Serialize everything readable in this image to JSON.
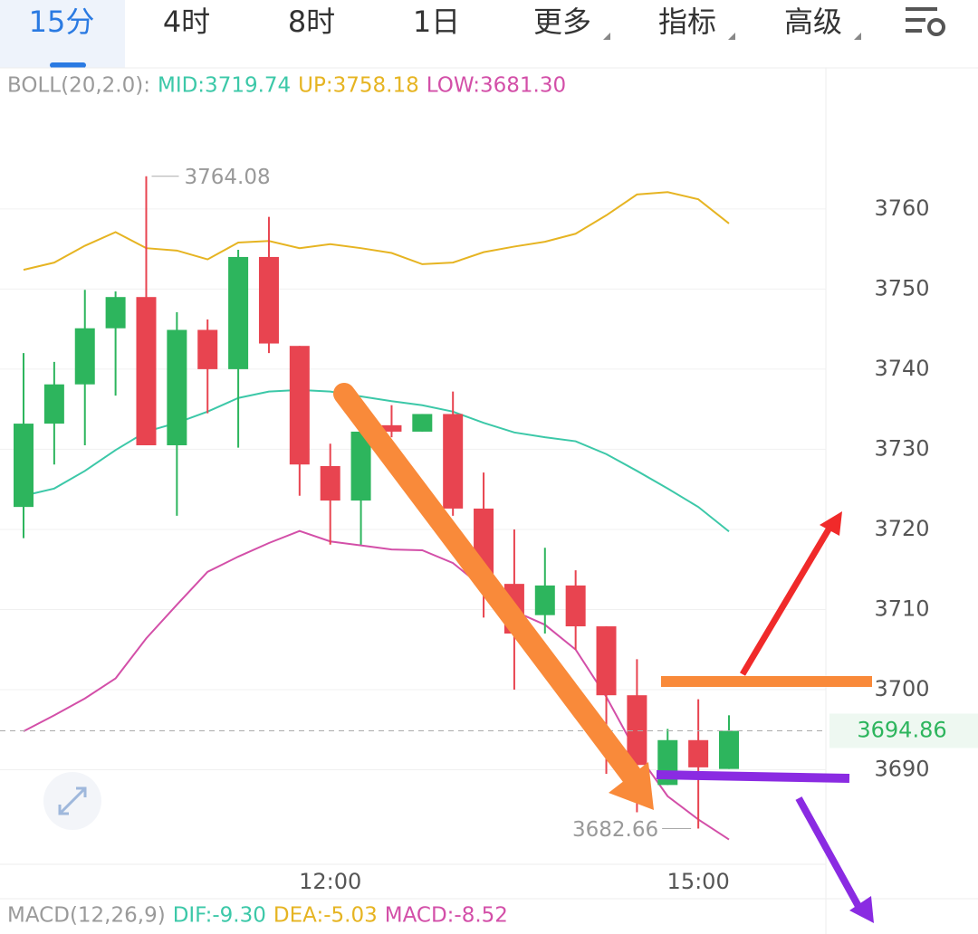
{
  "tabs": [
    "15分",
    "4时",
    "8时",
    "1日",
    "更多",
    "指标",
    "高级"
  ],
  "chart_data": {
    "type": "candlestick",
    "boll_labels": [
      "BOLL(20,2.0):",
      "MID:3719.74",
      "UP:3758.18",
      "LOW:3681.30"
    ],
    "boll_label_colors": [
      "#9a9a9a",
      "#3cc8a8",
      "#e6b422",
      "#d34fa8"
    ],
    "macd_labels": [
      "MACD(12,26,9)",
      "DIF:-9.30",
      "DEA:-5.03",
      "MACD:-8.52"
    ],
    "macd_label_colors": [
      "#9a9a9a",
      "#3cc8a8",
      "#e6b422",
      "#d34fa8"
    ],
    "categories": [
      null,
      null,
      null,
      null,
      null,
      null,
      null,
      null,
      null,
      null,
      "12:00",
      null,
      null,
      null,
      null,
      null,
      null,
      null,
      null,
      null,
      null,
      null,
      "15:00",
      null
    ],
    "open": [
      3722.8,
      3733.2,
      3738.1,
      3745.1,
      3749.0,
      3730.5,
      3744.9,
      3740.0,
      3754.0,
      3742.9,
      3727.9,
      3723.6,
      3733.0,
      3732.2,
      3734.4,
      3722.6,
      3713.2,
      3709.3,
      3713.0,
      3707.9,
      3699.3,
      3688.1,
      3693.7,
      3690.1
    ],
    "high": [
      3742.0,
      3740.9,
      3749.9,
      3749.7,
      3764.08,
      3747.1,
      3746.2,
      3754.9,
      3759.0,
      3742.9,
      3730.7,
      3732.2,
      3735.5,
      3734.4,
      3737.2,
      3727.1,
      3720.0,
      3717.7,
      3714.9,
      3707.9,
      3703.8,
      3695.1,
      3698.8,
      3696.8
    ],
    "low": [
      3718.9,
      3728.1,
      3730.5,
      3736.7,
      3730.5,
      3721.7,
      3734.5,
      3730.2,
      3742.0,
      3724.2,
      3718.1,
      3718.1,
      3731.5,
      3732.2,
      3721.7,
      3709.0,
      3700.0,
      3707.0,
      3705.0,
      3689.5,
      3684.7,
      3688.1,
      3682.66,
      3690.1
    ],
    "close": [
      3733.2,
      3738.1,
      3745.1,
      3749.0,
      3730.5,
      3744.9,
      3740.0,
      3754.0,
      3743.2,
      3728.1,
      3723.6,
      3732.2,
      3732.2,
      3734.4,
      3722.6,
      3713.2,
      3707.0,
      3713.0,
      3707.9,
      3699.3,
      3690.6,
      3693.7,
      3690.3,
      3694.86
    ],
    "up_color": "#2db55d",
    "down_color": "#e84450",
    "series": [
      {
        "color": "#e6b422",
        "values": [
          3752.4,
          3753.3,
          3755.4,
          3757.1,
          3755.1,
          3754.8,
          3753.7,
          3755.8,
          3756.0,
          3755.1,
          3755.6,
          3755.1,
          3754.5,
          3753.1,
          3753.3,
          3754.6,
          3755.3,
          3755.9,
          3756.9,
          3759.2,
          3761.8,
          3762.1,
          3761.2,
          3758.18
        ]
      },
      {
        "color": "#3cc8a8",
        "values": [
          3724.2,
          3725.1,
          3727.3,
          3729.9,
          3732.2,
          3733.3,
          3734.7,
          3736.4,
          3737.2,
          3737.4,
          3737.2,
          3736.6,
          3736.0,
          3735.5,
          3734.7,
          3733.3,
          3732.1,
          3731.5,
          3731.0,
          3729.4,
          3727.3,
          3725.1,
          3722.8,
          3719.74
        ]
      },
      {
        "color": "#d34fa8",
        "values": [
          3694.8,
          3696.8,
          3698.9,
          3701.4,
          3706.4,
          3710.6,
          3714.7,
          3716.6,
          3718.3,
          3719.8,
          3718.5,
          3718.0,
          3717.5,
          3717.4,
          3715.8,
          3712.7,
          3709.8,
          3708.1,
          3705.0,
          3699.1,
          3692.1,
          3686.7,
          3683.8,
          3681.3
        ]
      }
    ],
    "ylim": [
      3678.2,
      3777.6
    ],
    "yticks": [
      3690,
      3700,
      3710,
      3720,
      3730,
      3740,
      3750,
      3760
    ],
    "grid": true,
    "last_price": 3694.86,
    "high_label": 3764.08,
    "low_label": 3682.66
  }
}
